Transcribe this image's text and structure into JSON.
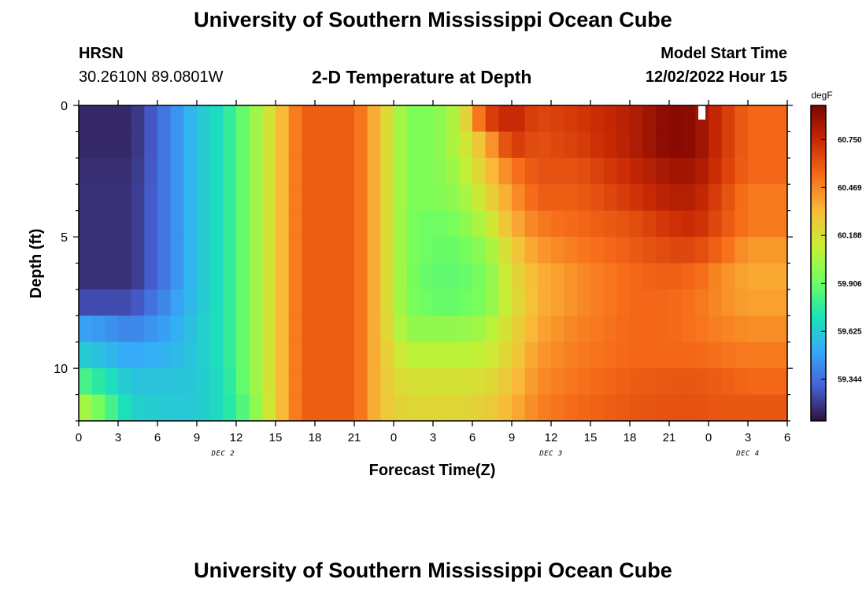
{
  "page": {
    "title_top": "University of Southern Mississippi Ocean Cube",
    "title_bottom": "University of Southern Mississippi Ocean Cube",
    "station": "HRSN",
    "coordinates": "30.2610N  89.0801W",
    "chart_title": "2-D Temperature at Depth",
    "model_start_label": "Model Start Time",
    "model_start_value": "12/02/2022 Hour 15"
  },
  "colors": {
    "colormap": [
      "#30123b",
      "#4662d7",
      "#36aaf9",
      "#1ae4b6",
      "#72fe5e",
      "#c8ef34",
      "#faba39",
      "#f66b19",
      "#ca2a04",
      "#7a0403"
    ]
  },
  "chart_data": {
    "type": "heatmap",
    "title": "2-D Temperature at Depth",
    "xlabel": "Forecast Time(Z)",
    "ylabel": "Depth (ft)",
    "x_ticks": [
      "0",
      "3",
      "6",
      "9",
      "12",
      "15",
      "18",
      "21",
      "0",
      "3",
      "6",
      "9",
      "12",
      "15",
      "18",
      "21",
      "0",
      "3",
      "6"
    ],
    "x_hours": [
      0,
      3,
      6,
      9,
      12,
      15,
      18,
      21,
      24,
      27,
      30,
      33,
      36,
      39,
      42,
      45,
      48,
      51,
      54
    ],
    "x_range": [
      0,
      54
    ],
    "date_labels": [
      {
        "label": "DEC 2",
        "hour": 11
      },
      {
        "label": "DEC 3",
        "hour": 36
      },
      {
        "label": "DEC 4",
        "hour": 51
      }
    ],
    "y_ticks": [
      0,
      5,
      10
    ],
    "y_range": [
      0,
      12
    ],
    "y_inverted": true,
    "colorbar_unit": "degF",
    "colorbar_ticks": [
      "60.750",
      "60.469",
      "60.188",
      "59.906",
      "59.625",
      "59.344"
    ],
    "colorbar_tick_values": [
      60.75,
      60.469,
      60.188,
      59.906,
      59.625,
      59.344
    ],
    "value_range": [
      59.1,
      60.95
    ],
    "depth_rows": [
      0.5,
      1.5,
      2.5,
      3.5,
      4.5,
      5.5,
      6.5,
      7.5,
      8.5,
      9.5,
      10.5,
      11.5
    ],
    "time_keys": [
      0,
      4,
      7,
      9,
      11,
      13,
      15,
      17,
      19,
      21,
      23,
      25,
      27,
      29,
      31,
      33,
      35,
      38,
      42,
      45,
      47,
      49,
      51,
      54
    ],
    "values": [
      [
        59.16,
        59.16,
        59.4,
        59.6,
        59.72,
        59.95,
        60.25,
        60.58,
        60.58,
        60.58,
        60.3,
        59.95,
        59.95,
        60.1,
        60.65,
        60.78,
        60.65,
        60.7,
        60.8,
        60.92,
        60.9,
        60.72,
        60.55,
        60.55
      ],
      [
        59.16,
        59.16,
        59.4,
        59.6,
        59.72,
        59.95,
        60.25,
        60.58,
        60.58,
        60.58,
        60.3,
        59.95,
        59.95,
        60.1,
        60.35,
        60.7,
        60.62,
        60.68,
        60.8,
        60.92,
        60.9,
        60.72,
        60.55,
        60.55
      ],
      [
        59.17,
        59.17,
        59.4,
        59.6,
        59.72,
        59.95,
        60.25,
        60.58,
        60.58,
        60.58,
        60.3,
        59.95,
        59.95,
        60.05,
        60.28,
        60.5,
        60.62,
        60.62,
        60.75,
        60.85,
        60.85,
        60.7,
        60.55,
        60.55
      ],
      [
        59.18,
        59.18,
        59.4,
        59.6,
        59.72,
        59.95,
        60.25,
        60.58,
        60.58,
        60.58,
        60.3,
        59.95,
        59.95,
        60.0,
        60.2,
        60.42,
        60.58,
        60.58,
        60.7,
        60.8,
        60.8,
        60.65,
        60.5,
        60.5
      ],
      [
        59.18,
        59.18,
        59.4,
        59.6,
        59.72,
        59.95,
        60.25,
        60.58,
        60.58,
        60.58,
        60.3,
        59.95,
        59.9,
        59.95,
        60.1,
        60.35,
        60.5,
        60.55,
        60.62,
        60.72,
        60.75,
        60.62,
        60.5,
        60.5
      ],
      [
        59.18,
        59.18,
        59.4,
        59.6,
        59.72,
        59.95,
        60.25,
        60.58,
        60.58,
        60.58,
        60.3,
        59.95,
        59.9,
        59.9,
        60.0,
        60.25,
        60.42,
        60.5,
        60.58,
        60.65,
        60.65,
        60.55,
        60.42,
        60.42
      ],
      [
        59.18,
        59.18,
        59.4,
        59.6,
        59.72,
        59.95,
        60.25,
        60.58,
        60.58,
        60.58,
        60.3,
        59.95,
        59.88,
        59.88,
        59.95,
        60.2,
        60.35,
        60.45,
        60.55,
        60.58,
        60.55,
        60.45,
        60.38,
        60.38
      ],
      [
        59.25,
        59.25,
        59.45,
        59.6,
        59.72,
        59.95,
        60.25,
        60.58,
        60.58,
        60.58,
        60.3,
        59.95,
        59.9,
        59.9,
        59.95,
        60.18,
        60.35,
        60.45,
        60.55,
        60.55,
        60.52,
        60.45,
        60.4,
        60.4
      ],
      [
        59.5,
        59.4,
        59.5,
        59.62,
        59.72,
        59.95,
        60.25,
        60.58,
        60.58,
        60.58,
        60.3,
        60.0,
        60.0,
        60.0,
        60.05,
        60.22,
        60.38,
        60.48,
        60.55,
        60.55,
        60.52,
        60.48,
        60.45,
        60.45
      ],
      [
        59.65,
        59.5,
        59.55,
        59.62,
        59.72,
        59.95,
        60.25,
        60.58,
        60.58,
        60.58,
        60.3,
        60.1,
        60.1,
        60.1,
        60.12,
        60.25,
        60.42,
        60.5,
        60.55,
        60.55,
        60.55,
        60.52,
        60.5,
        60.5
      ],
      [
        59.85,
        59.6,
        59.6,
        59.62,
        59.7,
        59.95,
        60.25,
        60.58,
        60.58,
        60.58,
        60.3,
        60.18,
        60.18,
        60.18,
        60.2,
        60.3,
        60.45,
        60.52,
        60.58,
        60.6,
        60.6,
        60.58,
        60.55,
        60.55
      ],
      [
        60.1,
        59.65,
        59.62,
        59.62,
        59.7,
        59.9,
        60.25,
        60.58,
        60.58,
        60.58,
        60.3,
        60.22,
        60.22,
        60.22,
        60.25,
        60.35,
        60.48,
        60.55,
        60.6,
        60.62,
        60.62,
        60.6,
        60.6,
        60.6
      ]
    ]
  }
}
